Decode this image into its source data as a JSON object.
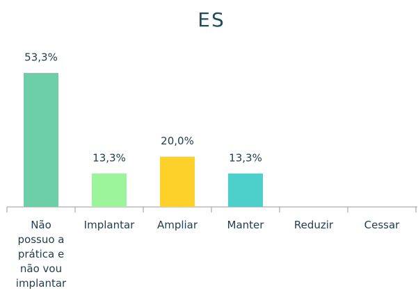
{
  "chart_data": {
    "type": "bar",
    "title": "ES",
    "categories": [
      "Não possuo a prática e não vou implantar",
      "Implantar",
      "Ampliar",
      "Manter",
      "Reduzir",
      "Cessar"
    ],
    "values": [
      53.3,
      13.3,
      20.0,
      13.3,
      0,
      0
    ],
    "value_labels": [
      "53,3%",
      "13,3%",
      "20,0%",
      "13,3%",
      null,
      null
    ],
    "colors": [
      "#6ccfa8",
      "#9cf59a",
      "#fdd12a",
      "#4dd0cc",
      "#4dd0cc",
      "#4dd0cc"
    ]
  }
}
